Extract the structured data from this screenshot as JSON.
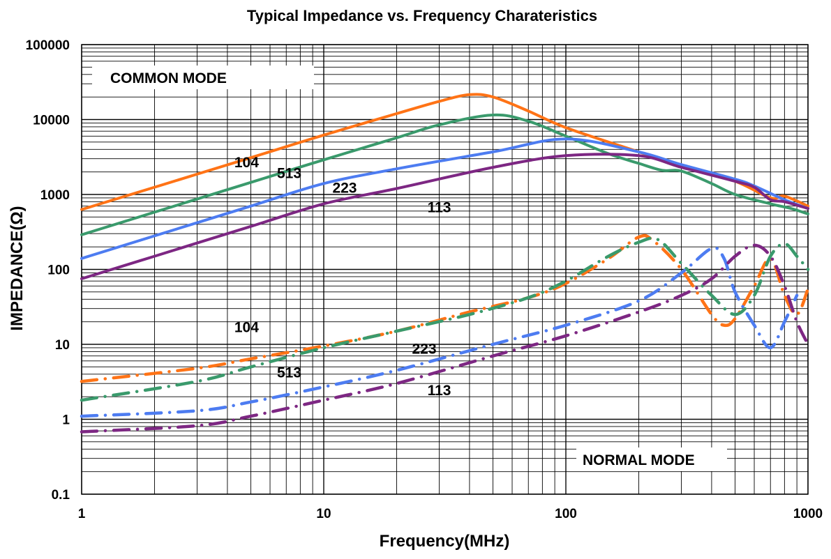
{
  "chart_data": {
    "type": "line",
    "title": "Typical Impedance vs. Frequency Charateristics",
    "xlabel": "Frequency(MHz)",
    "ylabel": "IMPEDANCE(Ω)",
    "xscale": "log",
    "yscale": "log",
    "xlim": [
      1,
      1000
    ],
    "ylim": [
      0.1,
      100000
    ],
    "grid": true,
    "x_ticks": [
      "1",
      "10",
      "100",
      "1000"
    ],
    "y_ticks": [
      "0.1",
      "1",
      "10",
      "100",
      "1000",
      "10000",
      "100000"
    ],
    "mode_labels": {
      "common": "COMMON MODE",
      "normal": "NORMAL MODE"
    },
    "series": [
      {
        "name": "104",
        "mode": "common",
        "color": "#FF7316",
        "points": [
          [
            1,
            630
          ],
          [
            2,
            1250
          ],
          [
            5,
            3100
          ],
          [
            10,
            6200
          ],
          [
            20,
            12000
          ],
          [
            30,
            17500
          ],
          [
            40,
            21500
          ],
          [
            50,
            20000
          ],
          [
            70,
            13000
          ],
          [
            100,
            7800
          ],
          [
            200,
            3700
          ],
          [
            300,
            2400
          ],
          [
            500,
            1500
          ],
          [
            700,
            900
          ],
          [
            800,
            950
          ],
          [
            1000,
            700
          ]
        ]
      },
      {
        "name": "513",
        "mode": "common",
        "color": "#3A9A6C",
        "points": [
          [
            1,
            290
          ],
          [
            2,
            580
          ],
          [
            5,
            1450
          ],
          [
            10,
            2900
          ],
          [
            20,
            5700
          ],
          [
            30,
            8500
          ],
          [
            50,
            11500
          ],
          [
            70,
            9500
          ],
          [
            100,
            6000
          ],
          [
            150,
            3500
          ],
          [
            200,
            2600
          ],
          [
            250,
            2100
          ],
          [
            300,
            2050
          ],
          [
            400,
            1400
          ],
          [
            500,
            1000
          ],
          [
            700,
            750
          ],
          [
            850,
            650
          ],
          [
            1000,
            550
          ]
        ]
      },
      {
        "name": "223",
        "mode": "common",
        "color": "#4D7CF1",
        "points": [
          [
            1,
            140
          ],
          [
            2,
            280
          ],
          [
            5,
            700
          ],
          [
            10,
            1400
          ],
          [
            20,
            2200
          ],
          [
            50,
            3700
          ],
          [
            100,
            5500
          ],
          [
            200,
            3700
          ],
          [
            300,
            2500
          ],
          [
            500,
            1600
          ],
          [
            600,
            1300
          ],
          [
            800,
            850
          ],
          [
            1000,
            650
          ]
        ]
      },
      {
        "name": "113",
        "mode": "common",
        "color": "#7D2783",
        "points": [
          [
            1,
            75
          ],
          [
            2,
            150
          ],
          [
            5,
            375
          ],
          [
            10,
            750
          ],
          [
            20,
            1200
          ],
          [
            50,
            2300
          ],
          [
            100,
            3300
          ],
          [
            200,
            3300
          ],
          [
            300,
            2300
          ],
          [
            500,
            1500
          ],
          [
            600,
            1250
          ],
          [
            700,
            850
          ],
          [
            800,
            800
          ],
          [
            1000,
            650
          ]
        ]
      },
      {
        "name": "104",
        "mode": "normal",
        "color": "#FF7316",
        "points": [
          [
            1,
            3.2
          ],
          [
            3,
            4.8
          ],
          [
            5,
            6.4
          ],
          [
            10,
            9.5
          ],
          [
            20,
            15
          ],
          [
            40,
            27
          ],
          [
            70,
            42
          ],
          [
            100,
            65
          ],
          [
            150,
            140
          ],
          [
            200,
            270
          ],
          [
            230,
            240
          ],
          [
            300,
            100
          ],
          [
            400,
            25
          ],
          [
            450,
            18
          ],
          [
            500,
            22
          ],
          [
            600,
            60
          ],
          [
            700,
            140
          ],
          [
            800,
            45
          ],
          [
            900,
            25
          ],
          [
            1000,
            55
          ]
        ]
      },
      {
        "name": "513",
        "mode": "normal",
        "color": "#3A9A6C",
        "points": [
          [
            1,
            1.8
          ],
          [
            3,
            3.2
          ],
          [
            5,
            5
          ],
          [
            10,
            9
          ],
          [
            20,
            15
          ],
          [
            40,
            25
          ],
          [
            70,
            42
          ],
          [
            100,
            70
          ],
          [
            150,
            150
          ],
          [
            200,
            230
          ],
          [
            240,
            250
          ],
          [
            300,
            120
          ],
          [
            400,
            45
          ],
          [
            500,
            25
          ],
          [
            600,
            45
          ],
          [
            700,
            150
          ],
          [
            800,
            220
          ],
          [
            900,
            150
          ],
          [
            1000,
            100
          ]
        ]
      },
      {
        "name": "223",
        "mode": "normal",
        "color": "#4D7CF1",
        "points": [
          [
            1,
            1.1
          ],
          [
            3,
            1.3
          ],
          [
            5,
            1.7
          ],
          [
            10,
            2.7
          ],
          [
            20,
            4.5
          ],
          [
            50,
            10
          ],
          [
            100,
            18
          ],
          [
            200,
            38
          ],
          [
            300,
            90
          ],
          [
            400,
            190
          ],
          [
            450,
            140
          ],
          [
            500,
            50
          ],
          [
            600,
            18
          ],
          [
            700,
            9
          ],
          [
            800,
            20
          ],
          [
            900,
            45
          ]
        ]
      },
      {
        "name": "113",
        "mode": "normal",
        "color": "#7D2783",
        "points": [
          [
            1,
            0.68
          ],
          [
            3,
            0.82
          ],
          [
            5,
            1.1
          ],
          [
            10,
            1.8
          ],
          [
            20,
            3
          ],
          [
            50,
            7
          ],
          [
            100,
            13
          ],
          [
            200,
            27
          ],
          [
            300,
            45
          ],
          [
            400,
            75
          ],
          [
            500,
            150
          ],
          [
            600,
            210
          ],
          [
            700,
            150
          ],
          [
            800,
            60
          ],
          [
            900,
            20
          ],
          [
            1000,
            10
          ]
        ]
      }
    ],
    "series_labels": [
      {
        "text": "104",
        "x": 4.8,
        "y": 2300
      },
      {
        "text": "513",
        "x": 7.2,
        "y": 1650
      },
      {
        "text": "223",
        "x": 12.2,
        "y": 1050
      },
      {
        "text": "113",
        "x": 30,
        "y": 580
      },
      {
        "text": "104",
        "x": 4.8,
        "y": 14.5
      },
      {
        "text": "513",
        "x": 7.2,
        "y": 3.6
      },
      {
        "text": "223",
        "x": 26,
        "y": 7.5
      },
      {
        "text": "113",
        "x": 30,
        "y": 2.1
      }
    ]
  }
}
